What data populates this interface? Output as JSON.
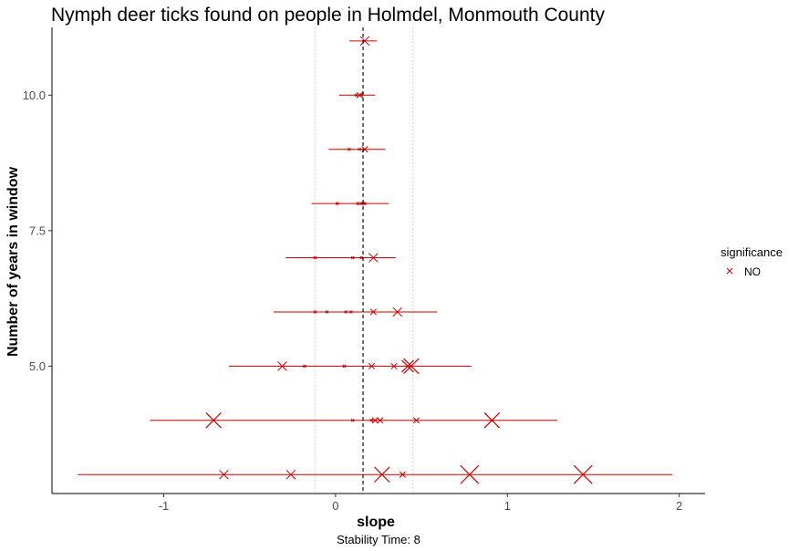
{
  "chart_data": {
    "type": "scatter",
    "title": "Nymph deer ticks found on people in Holmdel, Monmouth County",
    "xlabel": "slope",
    "ylabel": "Number of years in window",
    "caption": "Stability Time: 8",
    "xlim": [
      -1.65,
      2.15
    ],
    "ylim": [
      2.65,
      11.25
    ],
    "x_ticks": [
      -1,
      0,
      1,
      2
    ],
    "x_tick_labels": [
      "-1",
      "0",
      "1",
      "2"
    ],
    "y_ticks": [
      5.0,
      7.5,
      10.0
    ],
    "y_tick_labels": [
      "5.0",
      "7.5",
      "10.0"
    ],
    "reference_lines": {
      "dashed_center": 0.16,
      "dotted_bounds": [
        -0.12,
        0.45
      ]
    },
    "grid": false,
    "legend": {
      "title": "significance",
      "position": "right",
      "items": [
        {
          "label": "NO",
          "color": "#cc0000",
          "shape": "x"
        }
      ]
    },
    "marker_color": "#cc0000",
    "rows": [
      {
        "y": 11,
        "range": [
          0.08,
          0.24
        ],
        "points": [
          {
            "x": 0.17,
            "size": 3
          }
        ]
      },
      {
        "y": 10,
        "range": [
          0.02,
          0.23
        ],
        "points": [
          {
            "x": 0.12,
            "size": 1
          },
          {
            "x": 0.14,
            "size": 2
          },
          {
            "x": 0.15,
            "size": 1
          }
        ]
      },
      {
        "y": 9,
        "range": [
          -0.04,
          0.29
        ],
        "points": [
          {
            "x": 0.08,
            "size": 1
          },
          {
            "x": 0.14,
            "size": 1
          },
          {
            "x": 0.17,
            "size": 2
          }
        ]
      },
      {
        "y": 8,
        "range": [
          -0.14,
          0.31
        ],
        "points": [
          {
            "x": 0.01,
            "size": 1
          },
          {
            "x": 0.13,
            "size": 1
          },
          {
            "x": 0.15,
            "size": 1
          },
          {
            "x": 0.16,
            "size": 1
          },
          {
            "x": 0.17,
            "size": 1
          }
        ]
      },
      {
        "y": 7,
        "range": [
          -0.29,
          0.35
        ],
        "points": [
          {
            "x": -0.12,
            "size": 1
          },
          {
            "x": 0.1,
            "size": 1
          },
          {
            "x": 0.15,
            "size": 1
          },
          {
            "x": 0.22,
            "size": 3
          }
        ]
      },
      {
        "y": 6,
        "range": [
          -0.36,
          0.59
        ],
        "points": [
          {
            "x": -0.12,
            "size": 1
          },
          {
            "x": -0.05,
            "size": 1
          },
          {
            "x": 0.06,
            "size": 1
          },
          {
            "x": 0.09,
            "size": 1
          },
          {
            "x": 0.22,
            "size": 2
          },
          {
            "x": 0.36,
            "size": 3
          }
        ]
      },
      {
        "y": 5,
        "range": [
          -0.62,
          0.79
        ],
        "points": [
          {
            "x": -0.31,
            "size": 3
          },
          {
            "x": -0.18,
            "size": 1
          },
          {
            "x": 0.05,
            "size": 1
          },
          {
            "x": 0.21,
            "size": 2
          },
          {
            "x": 0.34,
            "size": 2
          },
          {
            "x": 0.42,
            "size": 4
          },
          {
            "x": 0.44,
            "size": 5
          }
        ]
      },
      {
        "y": 4,
        "range": [
          -1.08,
          1.29
        ],
        "points": [
          {
            "x": -0.71,
            "size": 5
          },
          {
            "x": 0.1,
            "size": 1
          },
          {
            "x": 0.21,
            "size": 1
          },
          {
            "x": 0.23,
            "size": 2
          },
          {
            "x": 0.26,
            "size": 2
          },
          {
            "x": 0.47,
            "size": 2
          },
          {
            "x": 0.91,
            "size": 5
          }
        ]
      },
      {
        "y": 3,
        "range": [
          -1.5,
          1.96
        ],
        "points": [
          {
            "x": -0.65,
            "size": 3
          },
          {
            "x": -0.26,
            "size": 3
          },
          {
            "x": 0.27,
            "size": 5
          },
          {
            "x": 0.39,
            "size": 2
          },
          {
            "x": 0.78,
            "size": 6
          },
          {
            "x": 1.44,
            "size": 6
          }
        ]
      }
    ]
  }
}
